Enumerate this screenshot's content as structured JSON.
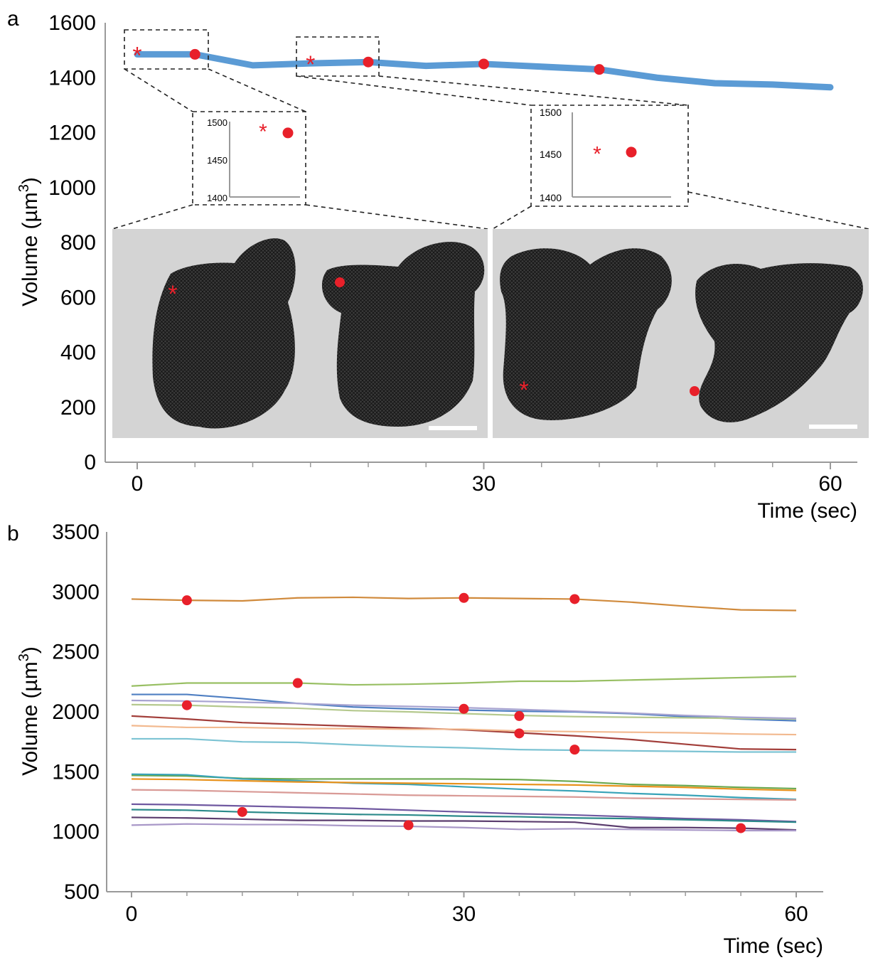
{
  "figure": {
    "panel_a_letter": "a",
    "panel_b_letter": "b"
  },
  "chart_data": [
    {
      "type": "line",
      "panel": "a",
      "xlabel": "Time (sec)",
      "ylabel": "Volume (µm3)",
      "ylabel_main": "Volume (µm",
      "ylabel_sup": "3",
      "ylabel_close": ")",
      "xlim": [
        0,
        60
      ],
      "ylim": [
        0,
        1600
      ],
      "xticks": [
        "0",
        "30",
        "60"
      ],
      "yticks": [
        "0",
        "200",
        "400",
        "600",
        "800",
        "1000",
        "1200",
        "1400",
        "1600"
      ],
      "series_color": "#5b9bd5",
      "marker_color": "#e8202a",
      "series": [
        {
          "x": [
            0,
            5,
            10,
            15,
            20,
            25,
            30,
            35,
            40,
            45,
            50,
            55,
            60
          ],
          "values": [
            1485,
            1485,
            1445,
            1452,
            1457,
            1443,
            1450,
            1440,
            1430,
            1400,
            1380,
            1375,
            1365
          ]
        }
      ],
      "star_markers": [
        {
          "x": 0,
          "y": 1485
        },
        {
          "x": 15,
          "y": 1452
        }
      ],
      "dot_markers": [
        {
          "x": 5,
          "y": 1485
        },
        {
          "x": 20,
          "y": 1457
        },
        {
          "x": 30,
          "y": 1450
        },
        {
          "x": 40,
          "y": 1430
        }
      ],
      "insets": [
        {
          "ylim": [
            1400,
            1500
          ],
          "yticks": [
            "1400",
            "1450",
            "1500"
          ],
          "star_y": 1488,
          "dot_y": 1485
        },
        {
          "ylim": [
            1400,
            1500
          ],
          "yticks": [
            "1400",
            "1450",
            "1500"
          ],
          "star_y": 1452,
          "dot_y": 1453
        }
      ]
    },
    {
      "type": "line",
      "panel": "b",
      "xlabel": "Time (sec)",
      "ylabel": "Volume (µm3)",
      "ylabel_main": "Volume (µm",
      "ylabel_sup": "3",
      "ylabel_close": ")",
      "xlim": [
        0,
        60
      ],
      "ylim": [
        500,
        3500
      ],
      "xticks": [
        "0",
        "30",
        "60"
      ],
      "yticks": [
        "500",
        "1000",
        "1500",
        "2000",
        "2500",
        "3000",
        "3500"
      ],
      "x": [
        0,
        5,
        10,
        15,
        20,
        25,
        30,
        35,
        40,
        45,
        50,
        55,
        60
      ],
      "series": [
        {
          "color": "#d08a3c",
          "values": [
            2940,
            2930,
            2925,
            2950,
            2955,
            2945,
            2950,
            2945,
            2940,
            2915,
            2880,
            2850,
            2845
          ]
        },
        {
          "color": "#98bf63",
          "values": [
            2215,
            2240,
            2240,
            2240,
            2225,
            2230,
            2240,
            2255,
            2255,
            2265,
            2275,
            2285,
            2295
          ]
        },
        {
          "color": "#4f7fc2",
          "values": [
            2145,
            2145,
            2110,
            2070,
            2040,
            2025,
            2015,
            2005,
            2000,
            1985,
            1960,
            1940,
            1925
          ]
        },
        {
          "color": "#b5c98e",
          "values": [
            2060,
            2055,
            2040,
            2030,
            2010,
            2000,
            1985,
            1970,
            1960,
            1955,
            1950,
            1945,
            1940
          ]
        },
        {
          "color": "#a8a4d1",
          "values": [
            2095,
            2090,
            2080,
            2070,
            2055,
            2045,
            2035,
            2020,
            2005,
            1990,
            1970,
            1955,
            1945
          ]
        },
        {
          "color": "#a23e3a",
          "values": [
            1965,
            1940,
            1910,
            1895,
            1880,
            1865,
            1850,
            1825,
            1800,
            1770,
            1730,
            1690,
            1685
          ]
        },
        {
          "color": "#f2b98f",
          "values": [
            1885,
            1870,
            1870,
            1860,
            1860,
            1855,
            1855,
            1840,
            1835,
            1830,
            1825,
            1815,
            1810
          ]
        },
        {
          "color": "#7cc3d3",
          "values": [
            1775,
            1775,
            1750,
            1745,
            1725,
            1710,
            1700,
            1685,
            1680,
            1675,
            1670,
            1665,
            1665
          ]
        },
        {
          "color": "#6aa84f",
          "values": [
            1470,
            1465,
            1445,
            1440,
            1440,
            1440,
            1440,
            1435,
            1420,
            1395,
            1385,
            1370,
            1360
          ]
        },
        {
          "color": "#38a3b8",
          "values": [
            1480,
            1475,
            1440,
            1425,
            1405,
            1395,
            1375,
            1355,
            1340,
            1320,
            1305,
            1285,
            1270
          ]
        },
        {
          "color": "#e8921c",
          "values": [
            1440,
            1435,
            1425,
            1415,
            1410,
            1405,
            1400,
            1395,
            1390,
            1380,
            1370,
            1355,
            1345
          ]
        },
        {
          "color": "#d99a96",
          "values": [
            1350,
            1345,
            1335,
            1325,
            1315,
            1305,
            1300,
            1295,
            1290,
            1280,
            1275,
            1270,
            1265
          ]
        },
        {
          "color": "#6f58a0",
          "values": [
            1230,
            1225,
            1215,
            1205,
            1195,
            1180,
            1165,
            1150,
            1140,
            1125,
            1110,
            1100,
            1085
          ]
        },
        {
          "color": "#2b8a8a",
          "values": [
            1185,
            1180,
            1165,
            1155,
            1145,
            1140,
            1130,
            1125,
            1115,
            1110,
            1100,
            1090,
            1080
          ]
        },
        {
          "color": "#5b3d6e",
          "values": [
            1120,
            1115,
            1105,
            1095,
            1095,
            1090,
            1090,
            1085,
            1080,
            1035,
            1035,
            1030,
            1015
          ]
        },
        {
          "color": "#a998c8",
          "values": [
            1055,
            1065,
            1060,
            1060,
            1050,
            1045,
            1035,
            1020,
            1025,
            1020,
            1015,
            1010,
            1010
          ]
        }
      ],
      "markers": [
        {
          "x": 5,
          "y": 2930
        },
        {
          "x": 30,
          "y": 2950
        },
        {
          "x": 40,
          "y": 2940
        },
        {
          "x": 15,
          "y": 2240
        },
        {
          "x": 5,
          "y": 2055
        },
        {
          "x": 30,
          "y": 2025
        },
        {
          "x": 35,
          "y": 1965
        },
        {
          "x": 35,
          "y": 1820
        },
        {
          "x": 40,
          "y": 1685
        },
        {
          "x": 10,
          "y": 1165
        },
        {
          "x": 25,
          "y": 1055
        },
        {
          "x": 55,
          "y": 1030
        }
      ]
    }
  ]
}
